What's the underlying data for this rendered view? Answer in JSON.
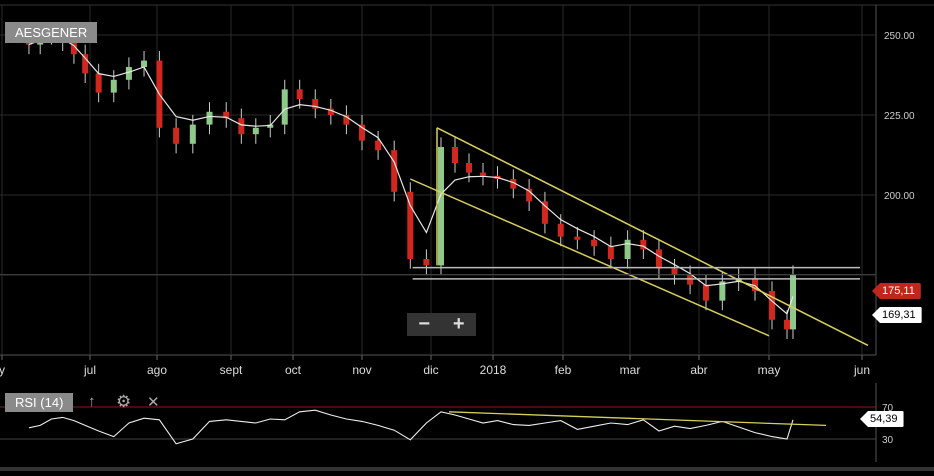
{
  "symbol": "AESGENER",
  "indicator": {
    "label": "RSI (14)",
    "icons": [
      "arrow-up-icon",
      "gear-icon",
      "close-icon"
    ]
  },
  "zoom": {
    "out_label": "−",
    "in_label": "+"
  },
  "last_price_label": "175,11",
  "ma_price_label": "169,31",
  "rsi_value_label": "54,39",
  "colors": {
    "up": "#8fc98a",
    "down": "#d0281e",
    "ma": "#e8e8e8",
    "trend": "#d8cf5a",
    "overbought": "#8b1a1a",
    "oversold": "#3a4a3a"
  },
  "chart_data": [
    {
      "type": "candlestick",
      "x_ticks": [
        "y",
        "jul",
        "ago",
        "sept",
        "oct",
        "nov",
        "dic",
        "2018",
        "feb",
        "mar",
        "abr",
        "may",
        "jun"
      ],
      "y_ticks": [
        "250.00",
        "225.00",
        "200.00"
      ],
      "ylim": [
        150,
        260
      ],
      "dates": [
        "2017-05-24",
        "2017-05-31",
        "2017-06-07",
        "2017-06-14",
        "2017-06-21",
        "2017-06-28",
        "2017-07-05",
        "2017-07-12",
        "2017-07-19",
        "2017-07-26",
        "2017-08-02",
        "2017-08-09",
        "2017-08-16",
        "2017-08-23",
        "2017-08-30",
        "2017-09-06",
        "2017-09-13",
        "2017-09-20",
        "2017-09-27",
        "2017-10-04",
        "2017-10-11",
        "2017-10-18",
        "2017-10-25",
        "2017-11-01",
        "2017-11-08",
        "2017-11-15",
        "2017-11-22",
        "2017-11-29",
        "2017-12-06",
        "2017-12-13",
        "2017-12-20",
        "2017-12-27",
        "2018-01-03",
        "2018-01-10",
        "2018-01-17",
        "2018-01-24",
        "2018-01-31",
        "2018-02-07",
        "2018-02-14",
        "2018-02-21",
        "2018-02-28",
        "2018-03-07",
        "2018-03-14",
        "2018-03-21",
        "2018-03-28",
        "2018-04-04",
        "2018-04-11",
        "2018-04-18",
        "2018-04-25",
        "2018-05-02",
        "2018-05-07",
        "2018-05-09"
      ],
      "close": [
        247,
        250,
        251,
        248,
        244,
        238,
        232,
        236,
        240,
        242,
        221,
        216,
        222,
        226,
        224,
        219,
        221,
        222,
        233,
        230,
        227,
        225,
        222,
        217,
        214,
        201,
        180,
        178,
        215,
        210,
        207,
        206,
        205,
        202,
        198,
        191,
        187,
        186,
        184,
        180,
        186,
        183,
        177,
        175,
        172,
        167,
        173,
        174,
        170,
        161,
        158,
        175
      ],
      "last": 175.11,
      "ma_last": 169.31,
      "trendlines": [
        {
          "from": [
            "2017-12-04",
            221
          ],
          "to": [
            "2018-06-03",
            153
          ]
        },
        {
          "from": [
            "2017-11-22",
            205
          ],
          "to": [
            "2018-05-01",
            156
          ]
        },
        {
          "from": [
            "2017-12-04",
            221
          ],
          "to": [
            "2017-12-04",
            178
          ]
        }
      ],
      "hlines": [
        {
          "price": 177.3,
          "from": "2017-11-23"
        },
        {
          "price": 173.8,
          "from": "2017-11-23"
        }
      ]
    },
    {
      "type": "line",
      "title": "RSI (14)",
      "y_ticks": [
        "70",
        "30"
      ],
      "ylim": [
        0,
        100
      ],
      "values": [
        44,
        47,
        55,
        57,
        53,
        47,
        40,
        33,
        50,
        56,
        54,
        24,
        30,
        52,
        54,
        52,
        50,
        55,
        54,
        64,
        66,
        60,
        55,
        52,
        47,
        41,
        29,
        50,
        64,
        60,
        55,
        50,
        53,
        48,
        47,
        50,
        53,
        42,
        46,
        50,
        48,
        54,
        40,
        46,
        43,
        47,
        52,
        45,
        38,
        33,
        30,
        54
      ],
      "trendline": {
        "from": [
          "2017-12-10",
          64
        ],
        "to": [
          "2018-05-20",
          47
        ]
      }
    }
  ]
}
